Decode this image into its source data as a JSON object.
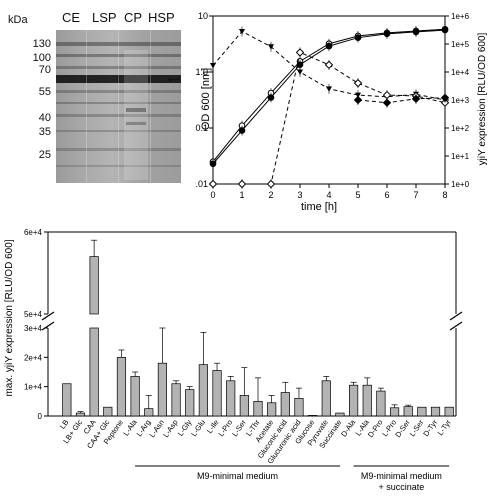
{
  "gel": {
    "unit": "kDa",
    "lanes": [
      "CE",
      "LSP",
      "CP",
      "HSP"
    ],
    "markers": [
      "130",
      "100",
      "70",
      "55",
      "40",
      "35",
      "25"
    ],
    "arrow": "←"
  },
  "chart_data": [
    {
      "type": "line",
      "xlabel": "time [h]",
      "ylabel": "OD 600 [nm]",
      "ylabel_right": "yjiY expression [RLU/OD 600]",
      "xlim": [
        0,
        8
      ],
      "ylim": [
        0.01,
        10
      ],
      "ylim_right": [
        1,
        1000000
      ],
      "yscale": "log",
      "x_ticks": [
        0,
        1,
        2,
        3,
        4,
        5,
        6,
        7,
        8
      ],
      "y_ticks": [
        "0.01",
        "0.1",
        "1.0",
        "10"
      ],
      "y_right_ticks": [
        "1e+0",
        "1e+1",
        "1e+2",
        "1e+3",
        "1e+4",
        "1e+5",
        "1e+6"
      ],
      "x": [
        0,
        1,
        2,
        3,
        4,
        5,
        6,
        7,
        8
      ],
      "series": [
        {
          "marker": "open-circle",
          "axis": "left",
          "values": [
            0.025,
            0.11,
            0.42,
            1.55,
            3.2,
            4.4,
            5.0,
            5.4,
            5.8
          ]
        },
        {
          "marker": "filled-circle",
          "axis": "left",
          "values": [
            0.023,
            0.09,
            0.35,
            1.35,
            2.9,
            4.1,
            4.8,
            5.2,
            5.6
          ]
        },
        {
          "marker": "filled-triangle",
          "axis": "right",
          "values": [
            17000,
            280000,
            80000,
            10000,
            2500,
            1500,
            1300,
            1600,
            1000
          ]
        },
        {
          "marker": "open-diamond",
          "axis": "right",
          "values": [
            1,
            1,
            1,
            50000,
            18000,
            4000,
            1500,
            1400,
            800
          ]
        },
        {
          "marker": "filled-diamond",
          "axis": "right",
          "values": [
            null,
            null,
            null,
            null,
            null,
            1000,
            800,
            1100,
            1200
          ]
        }
      ]
    },
    {
      "type": "bar",
      "ylabel": "max. yjiY expression [RLU/OD 600]",
      "y_ticks_lower": [
        "0",
        "1e+4",
        "2e+4",
        "3e+4"
      ],
      "y_ticks_upper": [
        "5e+4",
        "6e+4"
      ],
      "ylim_lower": [
        0,
        30000
      ],
      "ylim_upper": [
        50000,
        60000
      ],
      "categories": [
        "LB",
        "LB+ Glc",
        "CAA",
        "CAA+ Glc",
        "Peptone",
        "L-Ala",
        "L-Arg",
        "L-Asn",
        "L-Asp",
        "L-Gly",
        "L-Glu",
        "L-Ile",
        "L-Pro",
        "L-Ser",
        "L-Thr",
        "Acetate",
        "Gluconic acid",
        "Glucuronic acid",
        "Glucose",
        "Pyruvate",
        "Succinate",
        "D-Ala",
        "L-Ala",
        "D-Pro",
        "L-Pro",
        "D-Ser",
        "L-Ser",
        "D-Tyr",
        "L-Tyr"
      ],
      "values": [
        11000,
        1000,
        57000,
        3000,
        20000,
        13500,
        2500,
        18000,
        11000,
        9000,
        17500,
        15500,
        12000,
        7000,
        5000,
        4500,
        8000,
        6000,
        200,
        12000,
        1000,
        10500,
        10500,
        8500,
        2800,
        3200,
        3000,
        3000,
        3000
      ],
      "errors": [
        0,
        500,
        2000,
        0,
        2500,
        1500,
        4500,
        13000,
        1000,
        1000,
        11000,
        2500,
        1500,
        9500,
        8000,
        2500,
        3500,
        3500,
        0,
        1500,
        0,
        1000,
        2500,
        1000,
        1000,
        500,
        0,
        0,
        0
      ],
      "groups": [
        {
          "label": "M9-minimal medium",
          "from": "L-Ala",
          "to": "Succinate"
        },
        {
          "label": "M9-minimal medium + succinate",
          "from": "D-Ala",
          "to": "L-Tyr"
        }
      ],
      "bar_color": "#b3b3b3"
    }
  ]
}
